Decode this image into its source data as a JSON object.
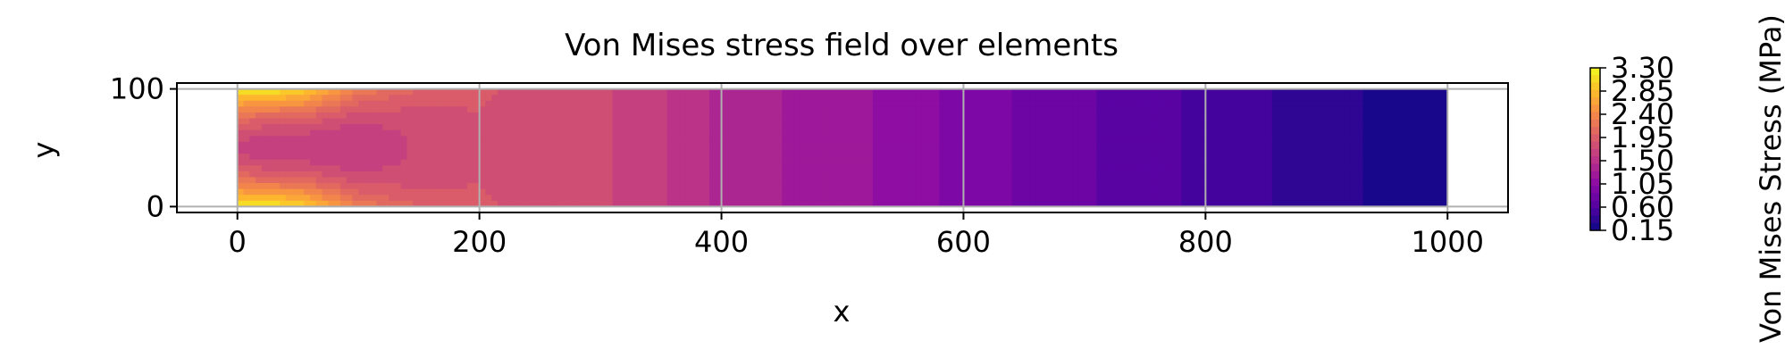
{
  "chart_data": {
    "type": "heatmap",
    "title": "Von Mises stress field over elements",
    "xlabel": "x",
    "ylabel": "y",
    "xlim": [
      -50,
      1050
    ],
    "ylim": [
      -5,
      105
    ],
    "xticks": [
      "0",
      "200",
      "400",
      "600",
      "800",
      "1000"
    ],
    "yticks": [
      "0",
      "100"
    ],
    "grid": true,
    "domain": {
      "x": [
        0,
        1000
      ],
      "y": [
        0,
        100
      ]
    },
    "colorbar": {
      "label": "Von Mises Stress (MPa)",
      "range": [
        0.15,
        3.3
      ],
      "colormap": "plasma",
      "ticks": [
        "0.15",
        "0.60",
        "1.05",
        "1.50",
        "1.95",
        "2.40",
        "2.85",
        "3.30"
      ]
    },
    "field_profile": {
      "x": [
        0,
        50,
        100,
        150,
        200,
        250,
        300,
        350,
        400,
        450,
        500,
        550,
        600,
        650,
        700,
        750,
        800,
        850,
        900,
        950,
        1000
      ],
      "stress_mid": [
        1.7,
        1.65,
        1.6,
        1.75,
        1.85,
        1.8,
        1.75,
        1.6,
        1.4,
        1.3,
        1.2,
        1.1,
        0.95,
        0.85,
        0.75,
        0.62,
        0.55,
        0.45,
        0.35,
        0.25,
        0.2
      ],
      "stress_edge": [
        3.3,
        3.1,
        2.3,
        2.0,
        1.9,
        1.8,
        1.75,
        1.6,
        1.4,
        1.3,
        1.2,
        1.1,
        0.95,
        0.85,
        0.75,
        0.62,
        0.55,
        0.45,
        0.35,
        0.25,
        0.2
      ]
    }
  }
}
